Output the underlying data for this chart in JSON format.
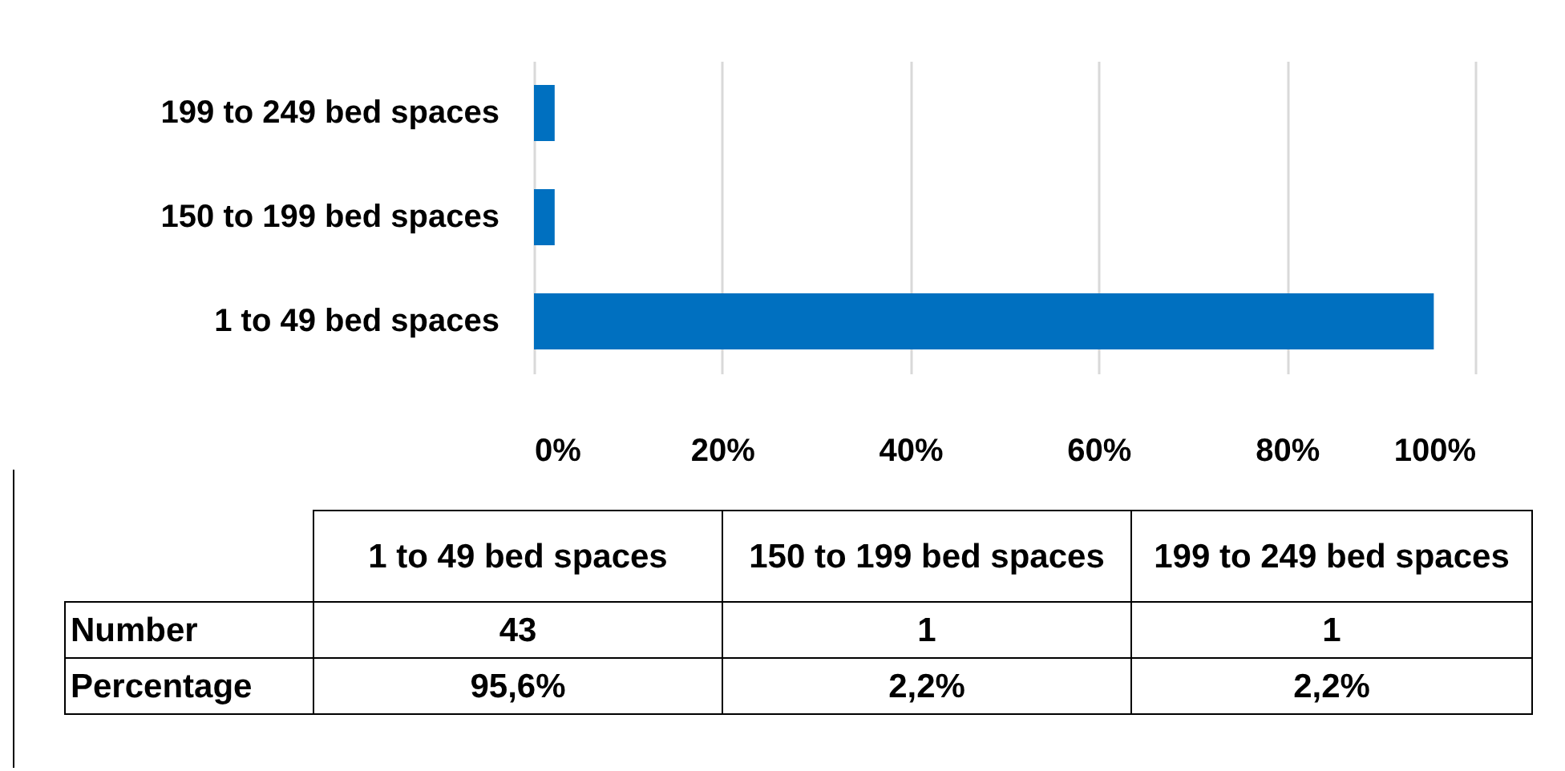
{
  "chart_data": {
    "type": "bar",
    "orientation": "horizontal",
    "categories": [
      "199 to 249 bed spaces",
      "150 to 199 bed spaces",
      "1 to 49 bed spaces"
    ],
    "values": [
      2.2,
      2.2,
      95.6
    ],
    "color": "#0070c0",
    "xlim": [
      0,
      100
    ],
    "xticks": [
      {
        "value": 0,
        "label": "0%"
      },
      {
        "value": 20,
        "label": "20%"
      },
      {
        "value": 40,
        "label": "40%"
      },
      {
        "value": 60,
        "label": "60%"
      },
      {
        "value": 80,
        "label": "80%"
      },
      {
        "value": 100,
        "label": "100%"
      }
    ],
    "grid": "x",
    "annotations": [
      "Number",
      "43",
      "1",
      "1",
      "Percentage",
      "95,6%",
      "2,2%",
      "2,2%"
    ]
  }
}
